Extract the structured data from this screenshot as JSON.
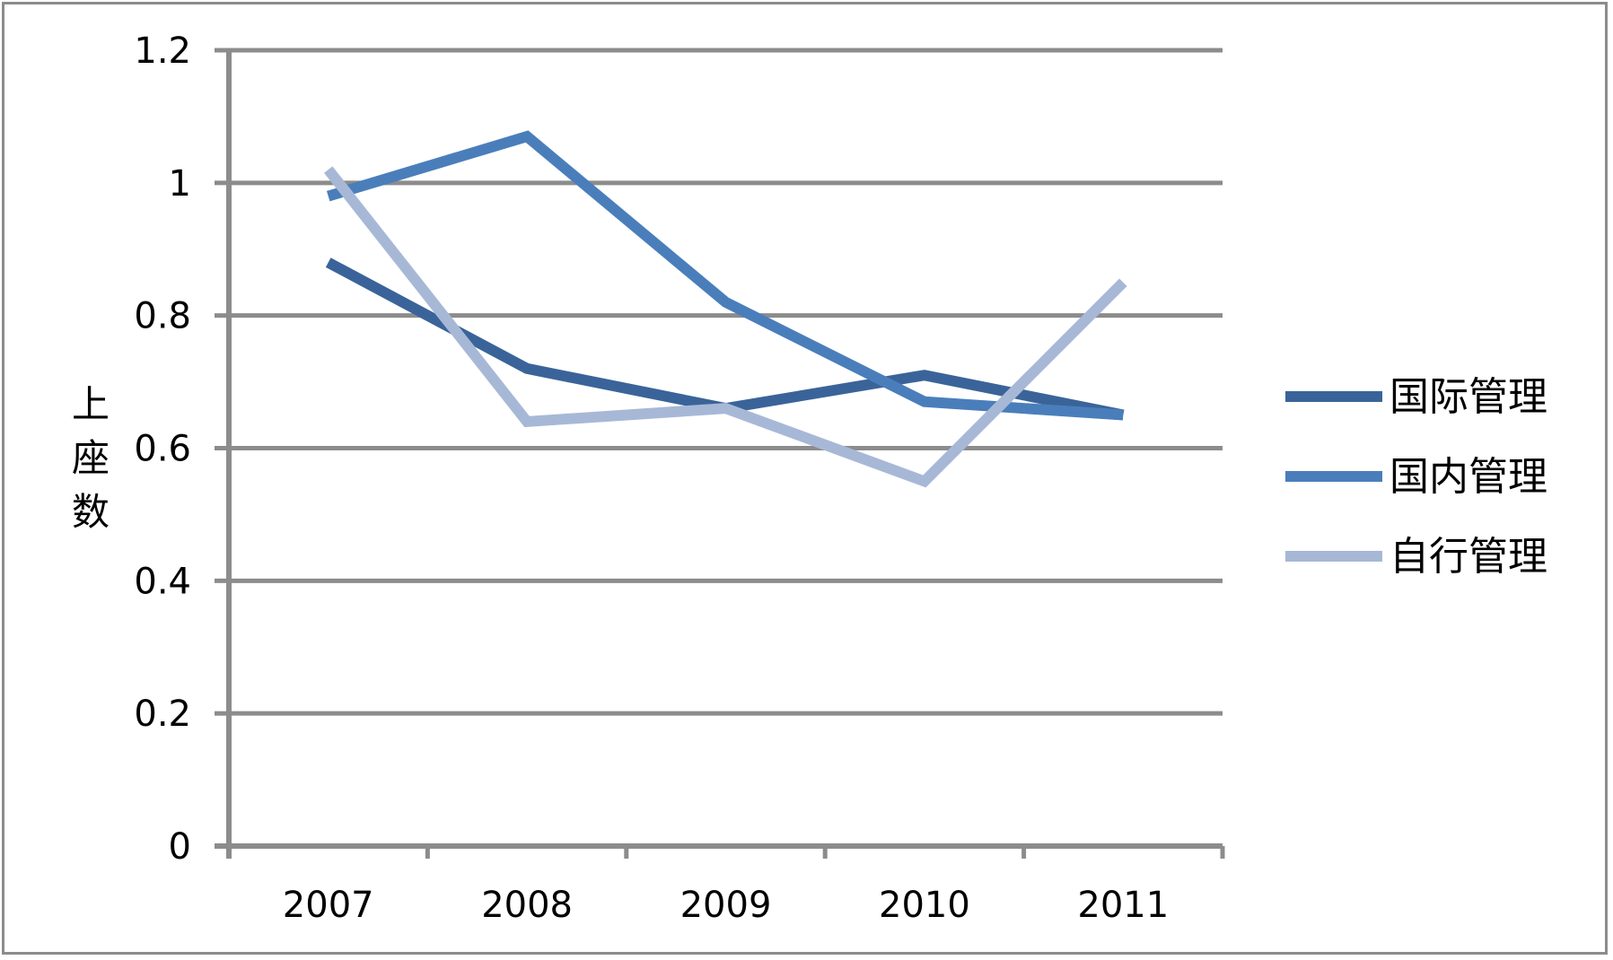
{
  "chart_data": {
    "type": "line",
    "ylabel": "上座数",
    "ylim": [
      0,
      1.2
    ],
    "ytick_labels": [
      "0",
      "0.2",
      "0.4",
      "0.6",
      "0.8",
      "1",
      "1.2"
    ],
    "yticks": [
      0,
      0.2,
      0.4,
      0.6,
      0.8,
      1.0,
      1.2
    ],
    "categories": [
      "2007",
      "2008",
      "2009",
      "2010",
      "2011"
    ],
    "grid": true,
    "legend_position": "right",
    "series": [
      {
        "name": "国际管理",
        "color": "#3A6499",
        "values": [
          0.88,
          0.72,
          0.66,
          0.71,
          0.65
        ]
      },
      {
        "name": "国内管理",
        "color": "#4A7EBB",
        "values": [
          0.98,
          1.07,
          0.82,
          0.67,
          0.65
        ]
      },
      {
        "name": "自行管理",
        "color": "#A7B8D7",
        "values": [
          1.02,
          0.64,
          0.66,
          0.55,
          0.85
        ]
      }
    ]
  }
}
